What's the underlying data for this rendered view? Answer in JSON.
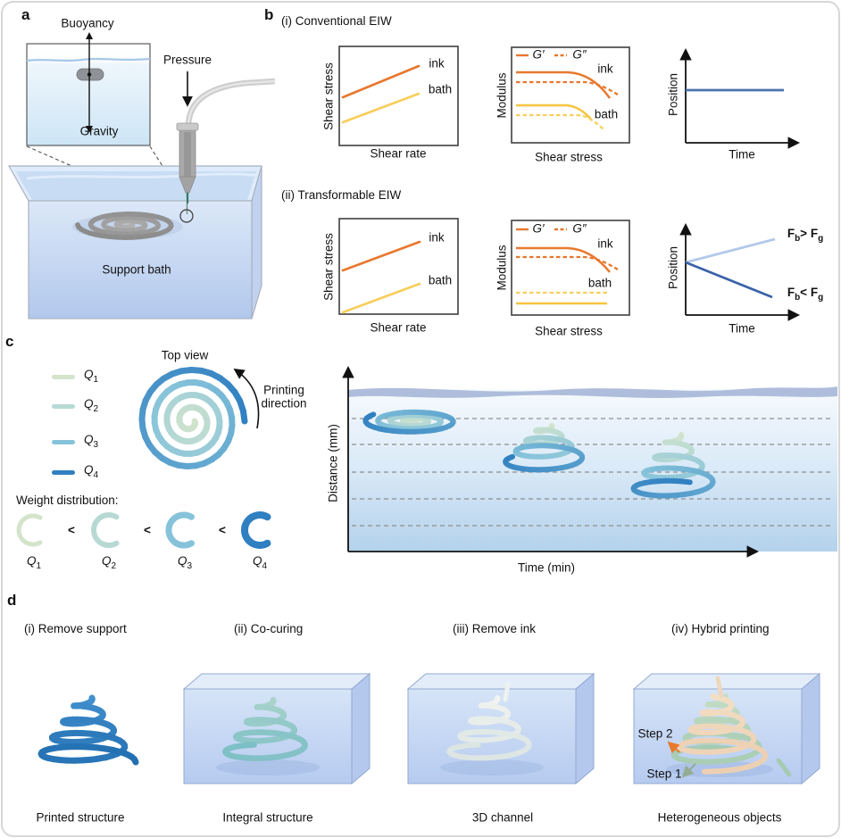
{
  "colors": {
    "ink_orange": "#E8782E",
    "bath_yellow": "#F7CE5B",
    "bath_yellow_solid": "#F5C43F",
    "position_blue": "#4C72B0",
    "light_blue_line": "#B3C9E9",
    "dark_blue_line": "#3A62A8",
    "q1": "#D3E4CB",
    "q2": "#B7D9D3",
    "q3": "#86C3DA",
    "q4": "#2F7FC1",
    "step1_green": "#93AC92",
    "step2_orange": "#E87A2E"
  },
  "panel_a": {
    "label": "a",
    "buoyancy": "Buoyancy",
    "pressure": "Pressure",
    "gravity": "Gravity",
    "support_bath": "Support bath"
  },
  "panel_b": {
    "label": "b",
    "section_i_title": "(i) Conventional EIW",
    "section_ii_title": "(ii) Transformable EIW",
    "flow_chart": {
      "ylabel": "Shear stress",
      "xlabel": "Shear rate",
      "ink_label": "ink",
      "bath_label": "bath"
    },
    "modulus_chart": {
      "ylabel": "Modulus",
      "xlabel": "Shear stress",
      "legend_storage": "G′",
      "legend_loss": "G″",
      "ink_label": "ink",
      "bath_label": "bath"
    },
    "position_chart": {
      "ylabel": "Position",
      "xlabel": "Time"
    },
    "forces": {
      "up": {
        "F": "F",
        "sub": "b",
        "op": ">",
        "F2": "F",
        "sub2": "g"
      },
      "down": {
        "F": "F",
        "sub": "b",
        "op": "<",
        "F2": "F",
        "sub2": "g"
      }
    }
  },
  "panel_c": {
    "label": "c",
    "top_view": "Top view",
    "printing_line1": "Printing",
    "printing_line2": "direction",
    "weight_distribution": "Weight distribution:",
    "less_than": "<",
    "legend": [
      {
        "sym": "Q",
        "sub": "1"
      },
      {
        "sym": "Q",
        "sub": "2"
      },
      {
        "sym": "Q",
        "sub": "3"
      },
      {
        "sym": "Q",
        "sub": "4"
      }
    ],
    "plot": {
      "ylabel": "Distance (mm)",
      "xlabel": "Time (min)"
    }
  },
  "panel_d": {
    "label": "d",
    "items": [
      {
        "title": "(i) Remove support",
        "caption": "Printed structure"
      },
      {
        "title": "(ii) Co-curing",
        "caption": "Integral structure"
      },
      {
        "title": "(iii) Remove ink",
        "caption": "3D channel"
      },
      {
        "title": "(iv) Hybrid printing",
        "caption": "Heterogeneous objects"
      }
    ],
    "step1": "Step 1",
    "step2": "Step 2"
  },
  "chart_data": [
    {
      "id": "b_i_flow",
      "type": "line",
      "title": "(i) Conventional EIW - flow curves",
      "xlabel": "Shear rate",
      "ylabel": "Shear stress",
      "axes": "qualitative schematic, no numeric ticks",
      "series": [
        {
          "name": "ink",
          "color": "#E8782E",
          "points_norm": [
            [
              0.03,
              0.49
            ],
            [
              0.67,
              0.8
            ]
          ]
        },
        {
          "name": "bath",
          "color": "#F7CE5B",
          "points_norm": [
            [
              0.03,
              0.23
            ],
            [
              0.67,
              0.52
            ]
          ]
        }
      ]
    },
    {
      "id": "b_i_modulus",
      "type": "line",
      "title": "(i) Conventional EIW - oscillatory rheology",
      "xlabel": "Shear stress",
      "ylabel": "Modulus",
      "legend": [
        "G′ (solid)",
        "G″ (dashed)"
      ],
      "series": [
        {
          "name": "ink G′",
          "style": "solid",
          "color": "#E8782E",
          "shape": "high plateau then sharp drop at high stress, crosses below ink G″"
        },
        {
          "name": "ink G″",
          "style": "dashed",
          "color": "#E8782E",
          "shape": "plateau just below ink G′, gentle decline"
        },
        {
          "name": "bath G′",
          "style": "solid",
          "color": "#F5C43F",
          "shape": "lower plateau then sharp drop, crosses below bath G″"
        },
        {
          "name": "bath G″",
          "style": "dashed",
          "color": "#F8CF5C",
          "shape": "plateau below bath G′, gentle decline"
        }
      ],
      "note": "both ink and bath are yield-stress gels (G′ > G″ at rest with crossover)"
    },
    {
      "id": "b_i_position",
      "type": "line",
      "xlabel": "Time",
      "ylabel": "Position",
      "series": [
        {
          "name": "printed structure position",
          "color": "#4C72B0",
          "shape": "constant horizontal line"
        }
      ]
    },
    {
      "id": "b_ii_flow",
      "type": "line",
      "title": "(ii) Transformable EIW - flow curves",
      "xlabel": "Shear rate",
      "ylabel": "Shear stress",
      "series": [
        {
          "name": "ink",
          "color": "#E8782E",
          "points_norm": [
            [
              0.03,
              0.46
            ],
            [
              0.67,
              0.76
            ]
          ]
        },
        {
          "name": "bath",
          "color": "#F7CE5B",
          "points_norm": [
            [
              0.03,
              0.02
            ],
            [
              0.67,
              0.32
            ]
          ]
        }
      ]
    },
    {
      "id": "b_ii_modulus",
      "type": "line",
      "title": "(ii) Transformable EIW - oscillatory rheology",
      "xlabel": "Shear stress",
      "ylabel": "Modulus",
      "legend": [
        "G′ (solid)",
        "G″ (dashed)"
      ],
      "series": [
        {
          "name": "ink G′",
          "style": "solid",
          "color": "#E8782E",
          "shape": "high plateau then sharp drop, crosses below ink G″"
        },
        {
          "name": "ink G″",
          "style": "dashed",
          "color": "#E8782E",
          "shape": "plateau just below ink G′, gentle decline"
        },
        {
          "name": "bath G″",
          "style": "dashed",
          "color": "#F8CF5C",
          "shape": "flat plateau ABOVE bath G′, no crossover"
        },
        {
          "name": "bath G′",
          "style": "solid",
          "color": "#F5C43F",
          "shape": "flat low plateau, fluid-like bath"
        }
      ]
    },
    {
      "id": "b_ii_position",
      "type": "line",
      "xlabel": "Time",
      "ylabel": "Position",
      "series": [
        {
          "name": "Fb > Fg",
          "color": "#B3C9E9",
          "shape": "line rising from common origin"
        },
        {
          "name": "Fb < Fg",
          "color": "#3A62A8",
          "shape": "line falling from common origin"
        }
      ]
    },
    {
      "id": "c_sinking",
      "type": "schematic",
      "xlabel": "Time (min)",
      "ylabel": "Distance (mm)",
      "gridlines": "5 horizontal dashed lines",
      "description": "printed spiral (colored Q1 pale green to Q4 blue by extruded weight) starts flat at bath surface, then sinks and elongates into a cone at increasing times/depths; three snapshots shown"
    }
  ]
}
